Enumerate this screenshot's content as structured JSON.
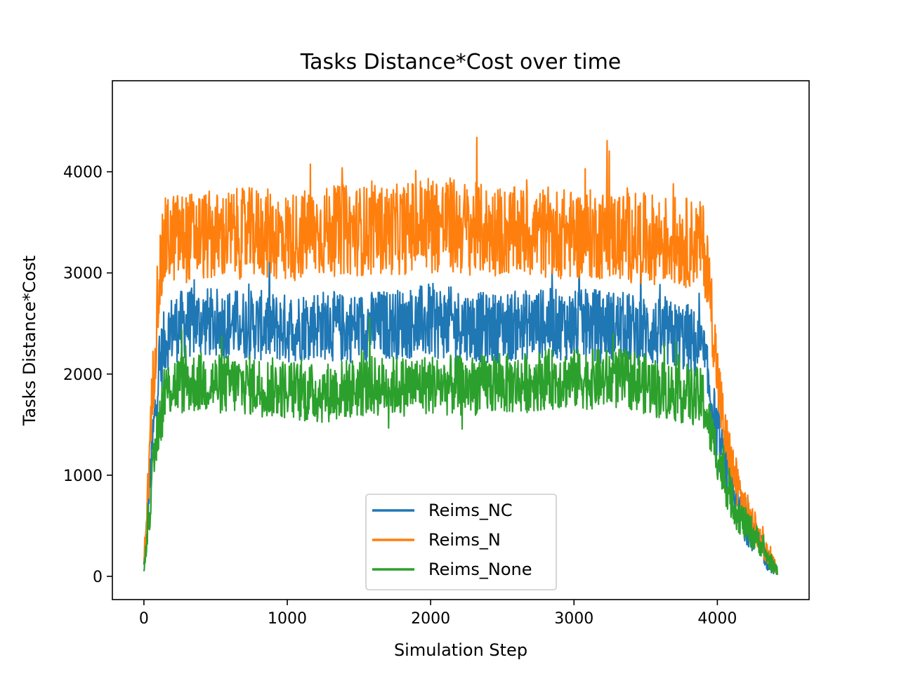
{
  "chart_data": {
    "type": "line",
    "title": "Tasks Distance*Cost over time",
    "xlabel": "Simulation Step",
    "ylabel": "Tasks Distance*Cost",
    "xlim": [
      -220,
      4640
    ],
    "ylim": [
      -230,
      4900
    ],
    "xticks": [
      0,
      1000,
      2000,
      3000,
      4000
    ],
    "yticks": [
      0,
      1000,
      2000,
      3000,
      4000
    ],
    "xtick_labels": [
      "0",
      "1000",
      "2000",
      "3000",
      "4000"
    ],
    "ytick_labels": [
      "0",
      "1000",
      "2000",
      "3000",
      "4000"
    ],
    "grid": false,
    "legend_position": "lower center",
    "series": [
      {
        "name": "Reims_NC",
        "color": "#1f77b4",
        "x": [
          0,
          30,
          60,
          100,
          150,
          200,
          300,
          400,
          500,
          600,
          800,
          1000,
          1200,
          1400,
          1600,
          1800,
          2000,
          2200,
          2400,
          2600,
          2800,
          3000,
          3200,
          3400,
          3600,
          3800,
          3900,
          3950,
          4000,
          4050,
          4100,
          4150,
          4200,
          4250,
          4300,
          4350,
          4400,
          4420
        ],
        "y": [
          100,
          700,
          1300,
          2000,
          2350,
          2450,
          2500,
          2520,
          2500,
          2500,
          2480,
          2450,
          2500,
          2450,
          2480,
          2500,
          2520,
          2500,
          2450,
          2480,
          2500,
          2480,
          2500,
          2450,
          2400,
          2350,
          2200,
          1800,
          1400,
          1100,
          850,
          650,
          500,
          400,
          300,
          150,
          80,
          50
        ],
        "spread": [
          50,
          200,
          300,
          350,
          350,
          350,
          350,
          350,
          350,
          350,
          350,
          350,
          350,
          350,
          350,
          350,
          380,
          350,
          350,
          350,
          350,
          350,
          350,
          350,
          350,
          350,
          350,
          300,
          300,
          250,
          220,
          200,
          180,
          160,
          120,
          100,
          60,
          40
        ]
      },
      {
        "name": "Reims_N",
        "color": "#ff7f0e",
        "x": [
          0,
          30,
          60,
          100,
          150,
          200,
          300,
          400,
          500,
          600,
          800,
          1000,
          1200,
          1400,
          1600,
          1800,
          2000,
          2200,
          2400,
          2600,
          2800,
          3000,
          3200,
          3400,
          3600,
          3800,
          3900,
          3950,
          4000,
          4050,
          4100,
          4150,
          4200,
          4250,
          4300,
          4350,
          4400,
          4420
        ],
        "y": [
          150,
          900,
          1800,
          2900,
          3300,
          3350,
          3350,
          3380,
          3350,
          3380,
          3400,
          3350,
          3400,
          3420,
          3420,
          3430,
          3500,
          3450,
          3420,
          3400,
          3400,
          3380,
          3380,
          3350,
          3330,
          3300,
          3300,
          2800,
          2000,
          1400,
          1100,
          850,
          650,
          500,
          380,
          220,
          100,
          60
        ],
        "spread": [
          60,
          250,
          400,
          450,
          450,
          450,
          450,
          450,
          450,
          450,
          450,
          450,
          450,
          450,
          450,
          450,
          500,
          480,
          450,
          450,
          450,
          450,
          450,
          450,
          450,
          450,
          400,
          400,
          350,
          300,
          260,
          220,
          200,
          180,
          140,
          110,
          70,
          40
        ]
      },
      {
        "name": "Reims_None",
        "color": "#2ca02c",
        "x": [
          0,
          30,
          60,
          100,
          150,
          200,
          300,
          400,
          500,
          600,
          800,
          1000,
          1200,
          1400,
          1600,
          1800,
          2000,
          2200,
          2400,
          2600,
          2800,
          3000,
          3200,
          3400,
          3600,
          3800,
          3900,
          3950,
          4000,
          4050,
          4100,
          4150,
          4200,
          4250,
          4300,
          4350,
          4400,
          4420
        ],
        "y": [
          70,
          500,
          950,
          1500,
          1800,
          1900,
          1900,
          1920,
          1900,
          1900,
          1880,
          1850,
          1800,
          1850,
          1880,
          1880,
          1900,
          1880,
          1900,
          1900,
          1950,
          1950,
          1950,
          1950,
          1850,
          1800,
          1750,
          1450,
          1200,
          950,
          750,
          600,
          500,
          420,
          320,
          180,
          80,
          50
        ],
        "spread": [
          40,
          150,
          250,
          300,
          300,
          300,
          300,
          300,
          300,
          300,
          300,
          300,
          300,
          300,
          300,
          300,
          300,
          300,
          300,
          300,
          300,
          300,
          300,
          300,
          300,
          300,
          300,
          260,
          240,
          220,
          200,
          180,
          170,
          160,
          120,
          100,
          60,
          40
        ]
      }
    ]
  }
}
